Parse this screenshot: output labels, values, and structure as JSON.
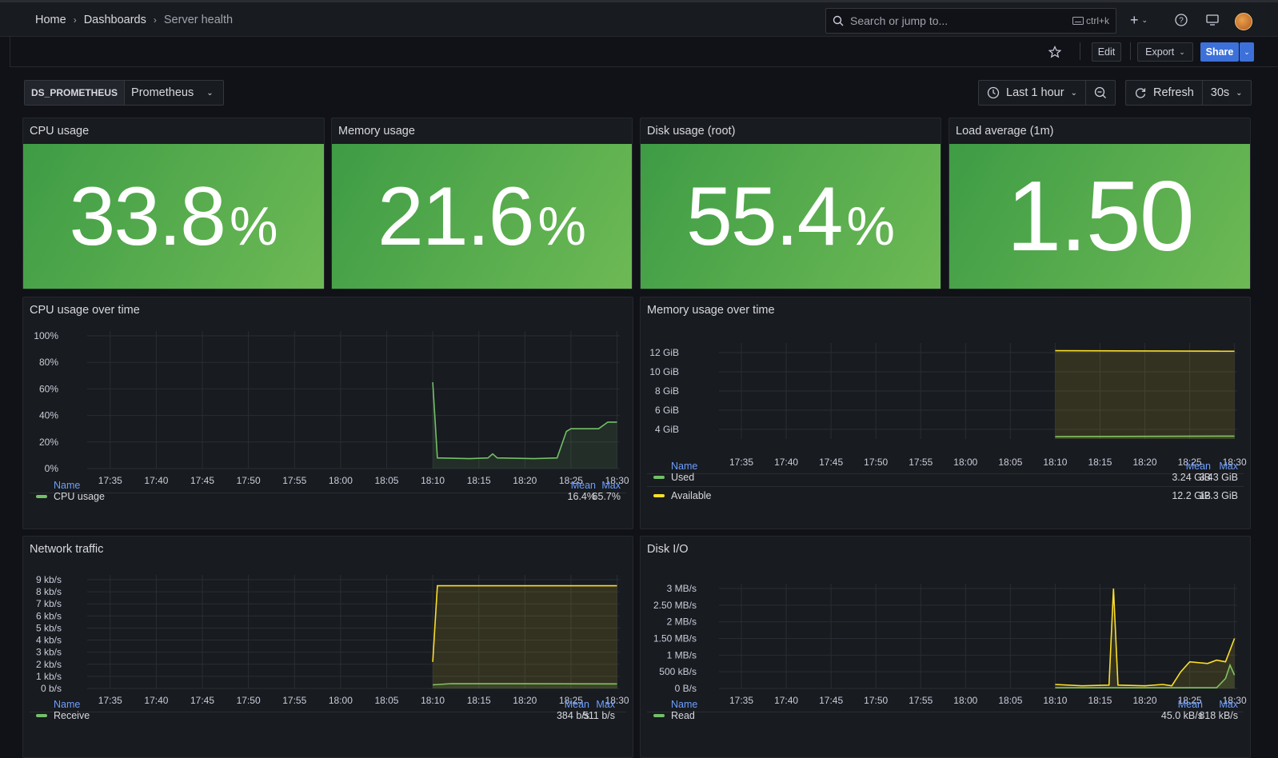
{
  "breadcrumb": [
    "Home",
    "Dashboards",
    "Server health"
  ],
  "search": {
    "placeholder": "Search or jump to...",
    "shortcut": "ctrl+k"
  },
  "toolbar": {
    "edit": "Edit",
    "export": "Export",
    "share": "Share"
  },
  "variable": {
    "label": "DS_PROMETHEUS",
    "value": "Prometheus"
  },
  "time": {
    "range": "Last 1 hour",
    "refresh": "Refresh",
    "interval": "30s"
  },
  "colors": {
    "green": "#73bf69",
    "yellow": "#fade2a",
    "stat_bg": "#56ab4d",
    "link": "#6e9fff"
  },
  "stats": [
    {
      "title": "CPU usage",
      "value": "33.8",
      "unit": "%"
    },
    {
      "title": "Memory usage",
      "value": "21.6",
      "unit": "%"
    },
    {
      "title": "Disk usage (root)",
      "value": "55.4",
      "unit": "%"
    },
    {
      "title": "Load average (1m)",
      "value": "1.50",
      "unit": ""
    }
  ],
  "legend_headers": {
    "name": "Name",
    "mean": "Mean",
    "max": "Max"
  },
  "panels": {
    "cpu": {
      "title": "CPU usage over time",
      "legend": [
        {
          "name": "CPU usage",
          "color": "#73bf69",
          "mean": "16.4%",
          "max": "65.7%"
        }
      ]
    },
    "memory": {
      "title": "Memory usage over time",
      "legend": [
        {
          "name": "Used",
          "color": "#73bf69",
          "mean": "3.24 GiB",
          "max": "3.43 GiB"
        },
        {
          "name": "Available",
          "color": "#fade2a",
          "mean": "12.2 GiB",
          "max": "12.3 GiB"
        }
      ]
    },
    "network": {
      "title": "Network traffic",
      "legend": [
        {
          "name": "Receive",
          "color": "#73bf69",
          "mean": "384 b/s",
          "max": "511 b/s"
        }
      ]
    },
    "disk": {
      "title": "Disk I/O",
      "legend": [
        {
          "name": "Read",
          "color": "#73bf69",
          "mean": "45.0 kB/s",
          "max": "818 kB/s"
        }
      ]
    }
  },
  "chart_data": [
    {
      "type": "line",
      "title": "CPU usage over time",
      "x": [
        "17:35",
        "17:40",
        "17:45",
        "17:50",
        "17:55",
        "18:00",
        "18:05",
        "18:10",
        "18:15",
        "18:20",
        "18:25",
        "18:30"
      ],
      "yticks": [
        "0%",
        "20%",
        "40%",
        "60%",
        "80%",
        "100%"
      ],
      "ylim": [
        0,
        100
      ],
      "series": [
        {
          "name": "CPU usage",
          "color": "#73bf69",
          "points": [
            [
              "18:10",
              65
            ],
            [
              "18:10.5",
              8
            ],
            [
              "18:14",
              7.5
            ],
            [
              "18:16",
              8
            ],
            [
              "18:16.5",
              11
            ],
            [
              "18:17",
              8
            ],
            [
              "18:21",
              7.5
            ],
            [
              "18:23.5",
              8
            ],
            [
              "18:24",
              18
            ],
            [
              "18:24.5",
              28
            ],
            [
              "18:25",
              30
            ],
            [
              "18:28",
              30
            ],
            [
              "18:29",
              35
            ],
            [
              "18:30",
              35
            ]
          ]
        }
      ]
    },
    {
      "type": "area",
      "title": "Memory usage over time",
      "x": [
        "17:35",
        "17:40",
        "17:45",
        "17:50",
        "17:55",
        "18:00",
        "18:05",
        "18:10",
        "18:15",
        "18:20",
        "18:25",
        "18:30"
      ],
      "yticks": [
        "4 GiB",
        "6 GiB",
        "8 GiB",
        "10 GiB",
        "12 GiB"
      ],
      "ylim": [
        3,
        12.5
      ],
      "series": [
        {
          "name": "Used",
          "color": "#73bf69",
          "points": [
            [
              "18:10",
              3.24
            ],
            [
              "18:30",
              3.3
            ]
          ]
        },
        {
          "name": "Available",
          "color": "#fade2a",
          "points": [
            [
              "18:10",
              12.2
            ],
            [
              "18:30",
              12.15
            ]
          ]
        }
      ]
    },
    {
      "type": "area",
      "title": "Network traffic",
      "x": [
        "17:35",
        "17:40",
        "17:45",
        "17:50",
        "17:55",
        "18:00",
        "18:05",
        "18:10",
        "18:15",
        "18:20",
        "18:25",
        "18:30"
      ],
      "yticks": [
        "0 b/s",
        "1 kb/s",
        "2 kb/s",
        "3 kb/s",
        "4 kb/s",
        "5 kb/s",
        "6 kb/s",
        "7 kb/s",
        "8 kb/s",
        "9 kb/s"
      ],
      "ylim": [
        0,
        9
      ],
      "series": [
        {
          "name": "Receive",
          "color": "#73bf69",
          "points": [
            [
              "18:10",
              0.3
            ],
            [
              "18:12",
              0.4
            ],
            [
              "18:30",
              0.38
            ]
          ]
        },
        {
          "color": "#fade2a",
          "points": [
            [
              "18:10",
              2.2
            ],
            [
              "18:10.5",
              8.5
            ],
            [
              "18:30",
              8.5
            ]
          ]
        }
      ]
    },
    {
      "type": "line",
      "title": "Disk I/O",
      "x": [
        "17:35",
        "17:40",
        "17:45",
        "17:50",
        "17:55",
        "18:00",
        "18:05",
        "18:10",
        "18:15",
        "18:20",
        "18:25",
        "18:30"
      ],
      "yticks": [
        "0 B/s",
        "500 kB/s",
        "1 MB/s",
        "1.50 MB/s",
        "2 MB/s",
        "2.50 MB/s",
        "3 MB/s"
      ],
      "ylim": [
        0,
        3
      ],
      "series": [
        {
          "name": "Read",
          "color": "#73bf69",
          "points": [
            [
              "18:10",
              0.02
            ],
            [
              "18:28",
              0.02
            ],
            [
              "18:29",
              0.3
            ],
            [
              "18:29.5",
              0.7
            ],
            [
              "18:30",
              0.4
            ]
          ]
        },
        {
          "color": "#fade2a",
          "points": [
            [
              "18:10",
              0.12
            ],
            [
              "18:13",
              0.08
            ],
            [
              "18:16",
              0.1
            ],
            [
              "18:16.5",
              3.0
            ],
            [
              "18:17",
              0.1
            ],
            [
              "18:20",
              0.08
            ],
            [
              "18:22",
              0.12
            ],
            [
              "18:23",
              0.08
            ],
            [
              "18:24",
              0.5
            ],
            [
              "18:25",
              0.8
            ],
            [
              "18:27",
              0.75
            ],
            [
              "18:28",
              0.85
            ],
            [
              "18:29",
              0.8
            ],
            [
              "18:30",
              1.5
            ]
          ]
        }
      ]
    }
  ]
}
